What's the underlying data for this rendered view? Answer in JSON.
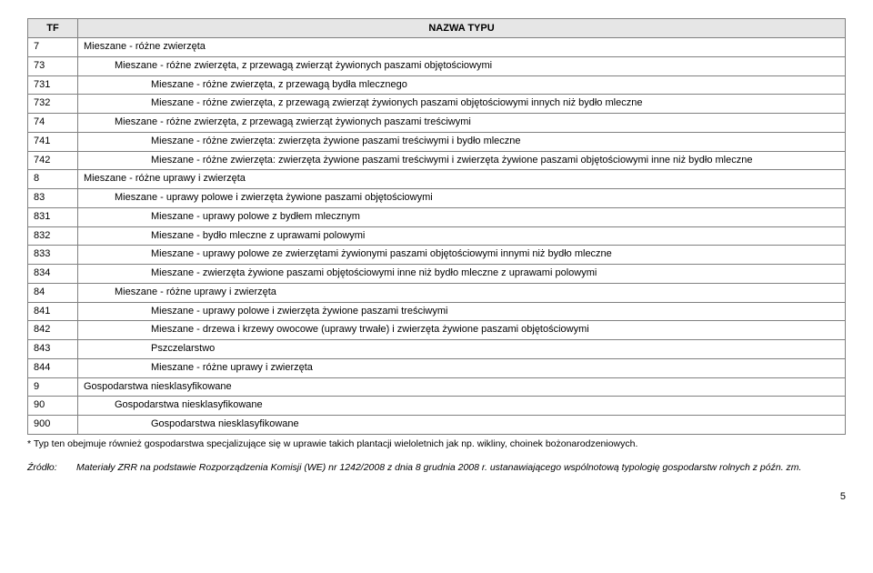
{
  "headers": {
    "tf": "TF",
    "name": "NAZWA TYPU"
  },
  "rows": [
    {
      "tf": "7",
      "indent": 0,
      "name": "Mieszane - różne zwierzęta"
    },
    {
      "tf": "73",
      "indent": 1,
      "name": "Mieszane - różne zwierzęta, z przewagą zwierząt żywionych paszami objętościowymi"
    },
    {
      "tf": "731",
      "indent": 2,
      "name": "Mieszane - różne zwierzęta, z przewagą bydła mlecznego"
    },
    {
      "tf": "732",
      "indent": 2,
      "name": "Mieszane - różne zwierzęta, z przewagą zwierząt żywionych paszami objętościowymi innych niż bydło mleczne"
    },
    {
      "tf": "74",
      "indent": 1,
      "name": "Mieszane - różne zwierzęta, z przewagą zwierząt żywionych paszami treściwymi"
    },
    {
      "tf": "741",
      "indent": 2,
      "name": "Mieszane - różne zwierzęta: zwierzęta żywione paszami treściwymi i bydło mleczne"
    },
    {
      "tf": "742",
      "indent": 2,
      "name": "Mieszane - różne zwierzęta: zwierzęta żywione paszami treściwymi i zwierzęta żywione paszami objętościowymi inne niż bydło mleczne"
    },
    {
      "tf": "8",
      "indent": 0,
      "name": "Mieszane - różne uprawy i zwierzęta"
    },
    {
      "tf": "83",
      "indent": 1,
      "name": "Mieszane - uprawy polowe i zwierzęta żywione paszami objętościowymi"
    },
    {
      "tf": "831",
      "indent": 2,
      "name": "Mieszane - uprawy polowe z bydłem mlecznym"
    },
    {
      "tf": "832",
      "indent": 2,
      "name": "Mieszane - bydło mleczne z uprawami polowymi"
    },
    {
      "tf": "833",
      "indent": 2,
      "name": "Mieszane - uprawy polowe ze zwierzętami żywionymi paszami objętościowymi innymi niż bydło mleczne"
    },
    {
      "tf": "834",
      "indent": 2,
      "name": "Mieszane - zwierzęta żywione paszami objętościowymi inne niż bydło mleczne z uprawami polowymi"
    },
    {
      "tf": "84",
      "indent": 1,
      "name": "Mieszane - różne uprawy i zwierzęta"
    },
    {
      "tf": "841",
      "indent": 2,
      "name": "Mieszane - uprawy polowe i zwierzęta żywione paszami treściwymi"
    },
    {
      "tf": "842",
      "indent": 2,
      "name": "Mieszane - drzewa i krzewy owocowe (uprawy trwałe) i zwierzęta żywione paszami objętościowymi"
    },
    {
      "tf": "843",
      "indent": 2,
      "name": "Pszczelarstwo"
    },
    {
      "tf": "844",
      "indent": 2,
      "name": "Mieszane - różne uprawy i zwierzęta"
    },
    {
      "tf": "9",
      "indent": 0,
      "name": "Gospodarstwa niesklasyfikowane"
    },
    {
      "tf": "90",
      "indent": 1,
      "name": "Gospodarstwa niesklasyfikowane"
    },
    {
      "tf": "900",
      "indent": 2,
      "name": "Gospodarstwa niesklasyfikowane"
    }
  ],
  "footnote": "* Typ ten obejmuje również gospodarstwa specjalizujące się w uprawie takich plantacji wieloletnich jak np. wikliny, choinek bożonarodzeniowych.",
  "source_label": "Źródło:",
  "source_text": "Materiały ZRR na podstawie Rozporządzenia Komisji (WE) nr 1242/2008 z dnia 8 grudnia 2008 r. ustanawiającego wspólnotową typologię gospodarstw rolnych z późn. zm.",
  "page_number": "5",
  "colors": {
    "header_bg": "#e6e6e6",
    "border": "#808080",
    "page_bg": "#ffffff",
    "text": "#000000"
  }
}
